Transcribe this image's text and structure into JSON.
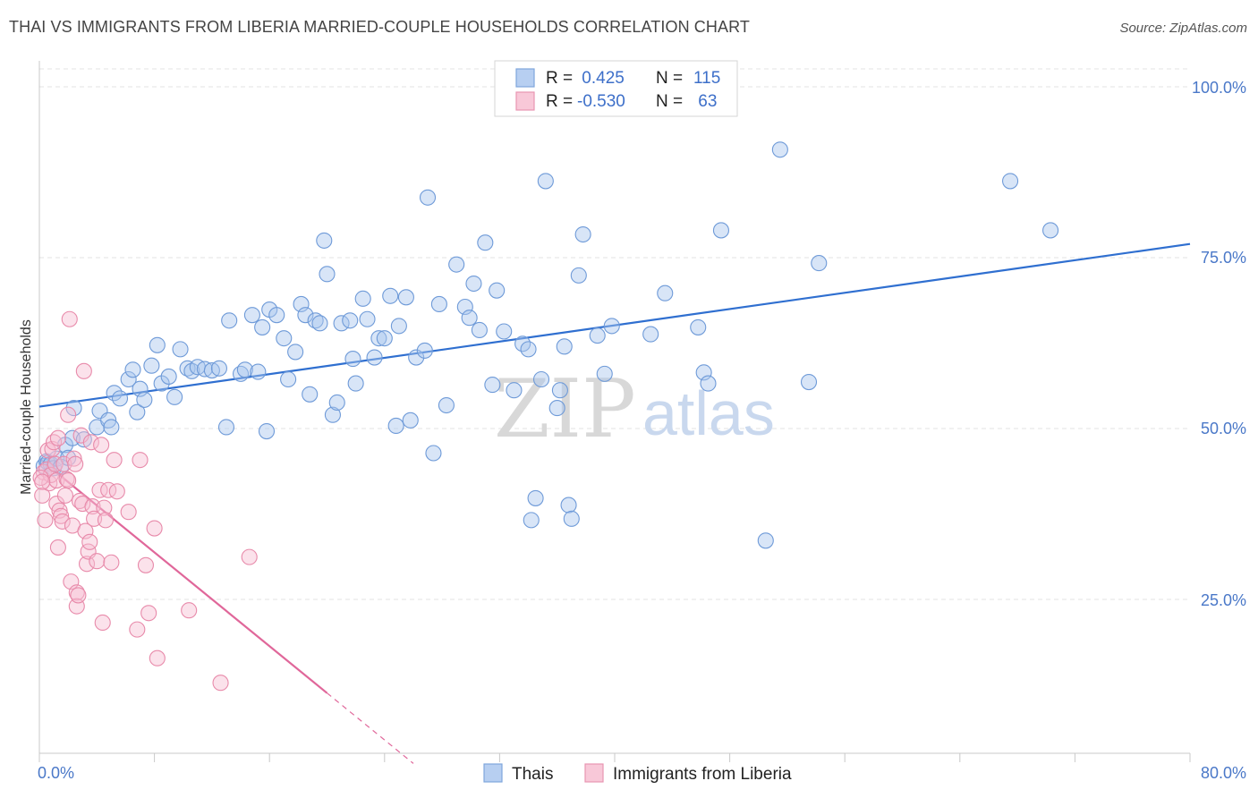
{
  "title": "THAI VS IMMIGRANTS FROM LIBERIA MARRIED-COUPLE HOUSEHOLDS CORRELATION CHART",
  "source": "Source: ZipAtlas.com",
  "watermark": {
    "zip": "ZIP",
    "atlas": "atlas"
  },
  "colors": {
    "blue_fill": "#a9c6ee",
    "blue_stroke": "#6e9ad8",
    "blue_line": "#2f6fd0",
    "pink_fill": "#f6bfd2",
    "pink_stroke": "#e88aaa",
    "pink_line": "#e0679a",
    "axis_text": "#4a78c8",
    "grid": "#e3e3e3"
  },
  "legend": {
    "rows": [
      {
        "r_label": "R =",
        "r_value": " 0.425",
        "n_label": "N =",
        "n_value": "115"
      },
      {
        "r_label": "R =",
        "r_value": "-0.530",
        "n_label": "N =",
        "n_value": " 63"
      }
    ]
  },
  "bottom_legend": [
    "Thais",
    "Immigrants from Liberia"
  ],
  "chart_data": {
    "type": "scatter",
    "title": "THAI VS IMMIGRANTS FROM LIBERIA MARRIED-COUPLE HOUSEHOLDS CORRELATION CHART",
    "xlabel": "",
    "ylabel": "Married-couple Households",
    "xlim": [
      0,
      80
    ],
    "ylim": [
      0,
      105
    ],
    "x_tick_labels": [
      "0.0%",
      "80.0%"
    ],
    "y_ticks": [
      25,
      50,
      75,
      100
    ],
    "y_tick_labels": [
      "25.0%",
      "50.0%",
      "75.0%",
      "100.0%"
    ],
    "grid": true,
    "series": [
      {
        "name": "Thais",
        "color": "blue",
        "trend": {
          "x0": 0,
          "y0": 53.2,
          "x1": 80,
          "y1": 77.0,
          "dashed_from": null
        },
        "points": [
          [
            0.3,
            44.5
          ],
          [
            0.5,
            45.2
          ],
          [
            0.6,
            45.0
          ],
          [
            0.8,
            44.8
          ],
          [
            1.0,
            44.2
          ],
          [
            1.2,
            45.6
          ],
          [
            1.5,
            44.4
          ],
          [
            1.8,
            47.6
          ],
          [
            2.0,
            45.7
          ],
          [
            2.3,
            48.6
          ],
          [
            3.1,
            48.4
          ],
          [
            2.4,
            53.0
          ],
          [
            4.0,
            50.2
          ],
          [
            4.2,
            52.6
          ],
          [
            4.8,
            51.2
          ],
          [
            5.0,
            50.2
          ],
          [
            5.2,
            55.2
          ],
          [
            5.6,
            54.4
          ],
          [
            6.2,
            57.2
          ],
          [
            6.5,
            58.6
          ],
          [
            6.8,
            52.4
          ],
          [
            7.0,
            55.8
          ],
          [
            7.3,
            54.2
          ],
          [
            7.8,
            59.2
          ],
          [
            8.2,
            62.2
          ],
          [
            8.5,
            56.6
          ],
          [
            9.0,
            57.6
          ],
          [
            9.4,
            54.6
          ],
          [
            9.8,
            61.6
          ],
          [
            10.3,
            58.8
          ],
          [
            10.6,
            58.4
          ],
          [
            11.0,
            59.0
          ],
          [
            11.5,
            58.7
          ],
          [
            12.0,
            58.5
          ],
          [
            12.5,
            58.8
          ],
          [
            13.0,
            50.2
          ],
          [
            13.2,
            65.8
          ],
          [
            14.0,
            58.0
          ],
          [
            14.3,
            58.6
          ],
          [
            14.8,
            66.6
          ],
          [
            15.2,
            58.3
          ],
          [
            15.5,
            64.8
          ],
          [
            15.8,
            49.6
          ],
          [
            16.0,
            67.4
          ],
          [
            16.5,
            66.6
          ],
          [
            17.0,
            63.2
          ],
          [
            17.3,
            57.2
          ],
          [
            17.8,
            61.2
          ],
          [
            18.2,
            68.2
          ],
          [
            18.5,
            66.6
          ],
          [
            18.8,
            55.0
          ],
          [
            19.2,
            65.8
          ],
          [
            19.5,
            65.4
          ],
          [
            19.8,
            77.5
          ],
          [
            20.0,
            72.6
          ],
          [
            20.4,
            52.0
          ],
          [
            20.7,
            53.8
          ],
          [
            21.0,
            65.4
          ],
          [
            21.6,
            65.8
          ],
          [
            21.8,
            60.2
          ],
          [
            22.0,
            56.6
          ],
          [
            22.5,
            69.0
          ],
          [
            22.8,
            66.0
          ],
          [
            23.3,
            60.4
          ],
          [
            23.6,
            63.2
          ],
          [
            24.0,
            63.2
          ],
          [
            24.4,
            69.4
          ],
          [
            24.8,
            50.4
          ],
          [
            25.0,
            65.0
          ],
          [
            25.5,
            69.2
          ],
          [
            25.8,
            51.2
          ],
          [
            26.2,
            60.4
          ],
          [
            26.8,
            61.4
          ],
          [
            27.0,
            83.8
          ],
          [
            27.4,
            46.4
          ],
          [
            27.8,
            68.2
          ],
          [
            28.3,
            53.4
          ],
          [
            29.0,
            74.0
          ],
          [
            29.6,
            67.8
          ],
          [
            29.9,
            66.2
          ],
          [
            30.2,
            71.2
          ],
          [
            30.6,
            64.4
          ],
          [
            31.0,
            77.2
          ],
          [
            31.5,
            56.4
          ],
          [
            31.8,
            70.2
          ],
          [
            32.3,
            64.2
          ],
          [
            33.0,
            55.6
          ],
          [
            33.6,
            62.4
          ],
          [
            34.0,
            61.6
          ],
          [
            34.2,
            36.6
          ],
          [
            34.5,
            39.8
          ],
          [
            34.9,
            57.2
          ],
          [
            35.2,
            86.2
          ],
          [
            36.0,
            53.0
          ],
          [
            36.2,
            55.6
          ],
          [
            36.5,
            62.0
          ],
          [
            36.8,
            38.8
          ],
          [
            37.0,
            36.8
          ],
          [
            37.5,
            72.4
          ],
          [
            37.8,
            78.4
          ],
          [
            38.8,
            63.6
          ],
          [
            39.3,
            58.0
          ],
          [
            39.8,
            65.0
          ],
          [
            42.5,
            63.8
          ],
          [
            43.5,
            69.8
          ],
          [
            45.8,
            64.8
          ],
          [
            46.2,
            58.2
          ],
          [
            46.5,
            56.6
          ],
          [
            47.4,
            79.0
          ],
          [
            50.5,
            33.6
          ],
          [
            51.5,
            90.8
          ],
          [
            53.5,
            56.8
          ],
          [
            54.2,
            74.2
          ],
          [
            67.5,
            86.2
          ],
          [
            70.3,
            79.0
          ]
        ]
      },
      {
        "name": "Immigrants from Liberia",
        "color": "pink",
        "trend": {
          "x0": 0,
          "y0": 45.6,
          "x1": 20.0,
          "y1": 11.3,
          "dashed_to": {
            "x": 26.0,
            "y": 1.0
          }
        },
        "points": [
          [
            0.2,
            40.2
          ],
          [
            0.3,
            43.6
          ],
          [
            0.4,
            36.6
          ],
          [
            0.5,
            44.0
          ],
          [
            0.6,
            46.8
          ],
          [
            0.7,
            42.0
          ],
          [
            0.8,
            43.2
          ],
          [
            0.9,
            47.0
          ],
          [
            1.0,
            48.0
          ],
          [
            1.1,
            44.8
          ],
          [
            1.2,
            42.4
          ],
          [
            1.2,
            39.0
          ],
          [
            1.3,
            48.6
          ],
          [
            1.3,
            32.6
          ],
          [
            1.4,
            38.0
          ],
          [
            1.5,
            37.2
          ],
          [
            1.6,
            36.4
          ],
          [
            1.7,
            44.8
          ],
          [
            1.8,
            40.2
          ],
          [
            1.9,
            42.6
          ],
          [
            2.0,
            42.4
          ],
          [
            2.0,
            52.0
          ],
          [
            2.1,
            66.0
          ],
          [
            2.2,
            27.6
          ],
          [
            2.3,
            35.8
          ],
          [
            2.4,
            45.6
          ],
          [
            2.5,
            44.8
          ],
          [
            2.6,
            26.0
          ],
          [
            2.6,
            24.0
          ],
          [
            2.7,
            25.6
          ],
          [
            2.8,
            39.4
          ],
          [
            2.9,
            49.0
          ],
          [
            3.0,
            39.0
          ],
          [
            3.1,
            58.4
          ],
          [
            3.2,
            35.0
          ],
          [
            3.3,
            30.2
          ],
          [
            3.4,
            32.0
          ],
          [
            3.5,
            33.4
          ],
          [
            3.6,
            48.0
          ],
          [
            3.7,
            38.6
          ],
          [
            3.8,
            36.8
          ],
          [
            4.0,
            30.6
          ],
          [
            4.2,
            41.0
          ],
          [
            4.3,
            47.6
          ],
          [
            4.4,
            21.6
          ],
          [
            4.5,
            38.4
          ],
          [
            4.6,
            36.6
          ],
          [
            4.8,
            41.0
          ],
          [
            5.0,
            30.4
          ],
          [
            5.2,
            45.4
          ],
          [
            5.4,
            40.8
          ],
          [
            6.2,
            37.8
          ],
          [
            6.8,
            20.6
          ],
          [
            7.0,
            45.4
          ],
          [
            7.4,
            30.0
          ],
          [
            7.6,
            23.0
          ],
          [
            8.0,
            35.4
          ],
          [
            8.2,
            16.4
          ],
          [
            10.4,
            23.4
          ],
          [
            12.6,
            12.8
          ],
          [
            14.6,
            31.2
          ],
          [
            0.1,
            42.8
          ],
          [
            0.2,
            42.2
          ]
        ]
      }
    ]
  }
}
